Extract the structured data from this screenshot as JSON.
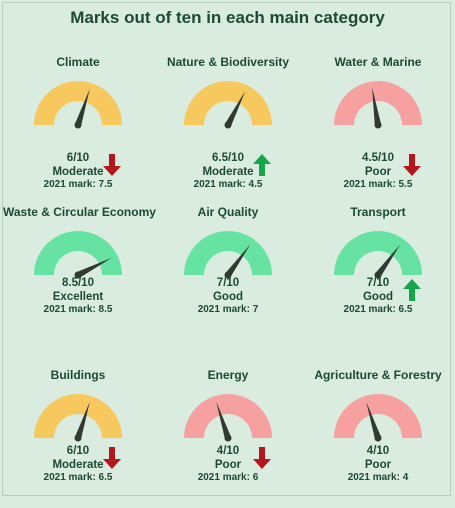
{
  "title": "Marks out of ten in each main category",
  "colors": {
    "moderate": "#f7c85e",
    "poor": "#f7a0a0",
    "good": "#66e3a2",
    "needle": "#2f3a33",
    "arrow_up": "#16a64a",
    "arrow_down": "#b3171b"
  },
  "chart_data": {
    "type": "gauge",
    "title": "Marks out of ten in each main category",
    "scale_max": 10,
    "categories": [
      {
        "name": "Climate",
        "score": 6,
        "score_label": "6/10",
        "rating": "Moderate",
        "band": "moderate",
        "trend": "down",
        "prev_label": "2021 mark: 7.5",
        "prev": 7.5
      },
      {
        "name": "Nature & Biodiversity",
        "score": 6.5,
        "score_label": "6.5/10",
        "rating": "Moderate",
        "band": "moderate",
        "trend": "up",
        "prev_label": "2021 mark: 4.5",
        "prev": 4.5
      },
      {
        "name": "Water & Marine",
        "score": 4.5,
        "score_label": "4.5/10",
        "rating": "Poor",
        "band": "poor",
        "trend": "down",
        "prev_label": "2021 mark: 5.5",
        "prev": 5.5
      },
      {
        "name": "Waste & Circular Economy",
        "score": 8.5,
        "score_label": "8.5/10",
        "rating": "Excellent",
        "band": "good",
        "trend": "none",
        "prev_label": "2021 mark: 8.5",
        "prev": 8.5
      },
      {
        "name": "Air Quality",
        "score": 7,
        "score_label": "7/10",
        "rating": "Good",
        "band": "good",
        "trend": "none",
        "prev_label": "2021 mark: 7",
        "prev": 7
      },
      {
        "name": "Transport",
        "score": 7,
        "score_label": "7/10",
        "rating": "Good",
        "band": "good",
        "trend": "up",
        "prev_label": "2021 mark: 6.5",
        "prev": 6.5
      },
      {
        "name": "Buildings",
        "score": 6,
        "score_label": "6/10",
        "rating": "Moderate",
        "band": "moderate",
        "trend": "down",
        "prev_label": "2021 mark: 6.5",
        "prev": 6.5
      },
      {
        "name": "Energy",
        "score": 4,
        "score_label": "4/10",
        "rating": "Poor",
        "band": "poor",
        "trend": "down",
        "prev_label": "2021 mark: 6",
        "prev": 6
      },
      {
        "name": "Agriculture & Forestry",
        "score": 4,
        "score_label": "4/10",
        "rating": "Poor",
        "band": "poor",
        "trend": "none",
        "prev_label": "2021 mark: 4",
        "prev": 4
      }
    ]
  }
}
